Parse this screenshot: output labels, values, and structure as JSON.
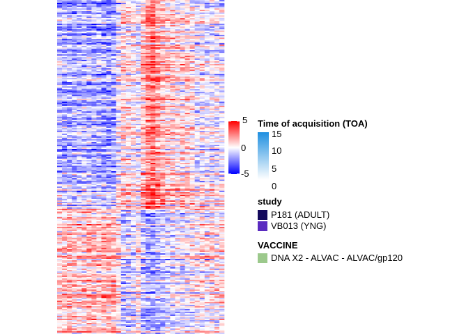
{
  "chart_data": {
    "type": "heatmap",
    "title": "",
    "xlabel": "",
    "ylabel": "",
    "value_colorbar": {
      "ticks": [
        5,
        0,
        -5
      ],
      "tick_labels": [
        "5",
        "0",
        "-5"
      ],
      "range": [
        -5,
        5
      ],
      "colors": {
        "low": "#0000ff",
        "mid": "#ffffff",
        "high": "#ff0000"
      }
    },
    "annotation_legends": {
      "toa": {
        "title": "Time of acquisition (TOA)",
        "ticks": [
          15,
          10,
          5,
          0
        ],
        "tick_labels": [
          "15",
          "10",
          "5",
          "0"
        ],
        "range": [
          0,
          16
        ],
        "colors": {
          "low": "#ffffff",
          "high": "#1f8fe0"
        }
      },
      "study": {
        "title": "study",
        "items": [
          {
            "label": "P181 (ADULT)",
            "color": "#140a5c"
          },
          {
            "label": "VB013 (YNG)",
            "color": "#5a2bc0"
          }
        ]
      },
      "vaccine": {
        "title": "VACCINE",
        "items": [
          {
            "label": "DNA X2 - ALVAC - ALVAC/gp120",
            "color": "#9cc98c"
          }
        ]
      }
    },
    "approx_structure": {
      "n_rows": 240,
      "n_cols": 34,
      "row_split_fraction": 0.625,
      "column_means_top_block": [
        -1.2,
        -1.4,
        -1.6,
        -1.5,
        -1.3,
        -1.2,
        -1.4,
        -1.6,
        -1.3,
        -1.7,
        -1.8,
        -1.6,
        -0.2,
        1.0,
        0.6,
        0.4,
        -0.3,
        1.3,
        2.6,
        2.9,
        2.1,
        1.5,
        1.0,
        1.2,
        0.6,
        0.8,
        1.0,
        0.5,
        -0.3,
        0.0,
        -0.2,
        -0.1,
        -0.3,
        -0.2
      ],
      "column_means_bottom_block": [
        1.0,
        1.2,
        1.4,
        1.2,
        1.1,
        1.3,
        1.5,
        1.3,
        1.1,
        1.4,
        1.6,
        1.5,
        0.5,
        -1.0,
        -0.8,
        -0.6,
        0.2,
        -1.2,
        -1.6,
        -1.8,
        -1.2,
        -1.0,
        -0.6,
        -0.5,
        -0.3,
        -0.4,
        -0.2,
        0.0,
        0.3,
        0.5,
        0.4,
        0.6,
        0.3,
        0.6
      ]
    }
  }
}
